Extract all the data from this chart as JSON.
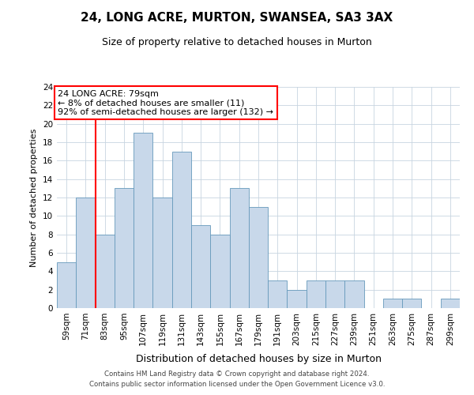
{
  "title1": "24, LONG ACRE, MURTON, SWANSEA, SA3 3AX",
  "title2": "Size of property relative to detached houses in Murton",
  "xlabel": "Distribution of detached houses by size in Murton",
  "ylabel": "Number of detached properties",
  "bar_values": [
    5,
    12,
    8,
    13,
    19,
    12,
    17,
    9,
    8,
    13,
    11,
    3,
    2,
    3,
    3,
    3,
    0,
    1,
    1,
    0,
    1
  ],
  "bin_labels": [
    "59sqm",
    "71sqm",
    "83sqm",
    "95sqm",
    "107sqm",
    "119sqm",
    "131sqm",
    "143sqm",
    "155sqm",
    "167sqm",
    "179sqm",
    "191sqm",
    "203sqm",
    "215sqm",
    "227sqm",
    "239sqm",
    "251sqm",
    "263sqm",
    "275sqm",
    "287sqm",
    "299sqm"
  ],
  "bar_color": "#c8d8ea",
  "bar_edge_color": "#6699bb",
  "vline_x": 2.0,
  "vline_color": "red",
  "annotation_text": "24 LONG ACRE: 79sqm\n← 8% of detached houses are smaller (11)\n92% of semi-detached houses are larger (132) →",
  "annotation_box_color": "white",
  "annotation_box_edge": "red",
  "ylim": [
    0,
    24
  ],
  "yticks": [
    0,
    2,
    4,
    6,
    8,
    10,
    12,
    14,
    16,
    18,
    20,
    22,
    24
  ],
  "bg_color": "#ffffff",
  "plot_bg_color": "#ffffff",
  "grid_color": "#c8d4e0",
  "footer1": "Contains HM Land Registry data © Crown copyright and database right 2024.",
  "footer2": "Contains public sector information licensed under the Open Government Licence v3.0."
}
